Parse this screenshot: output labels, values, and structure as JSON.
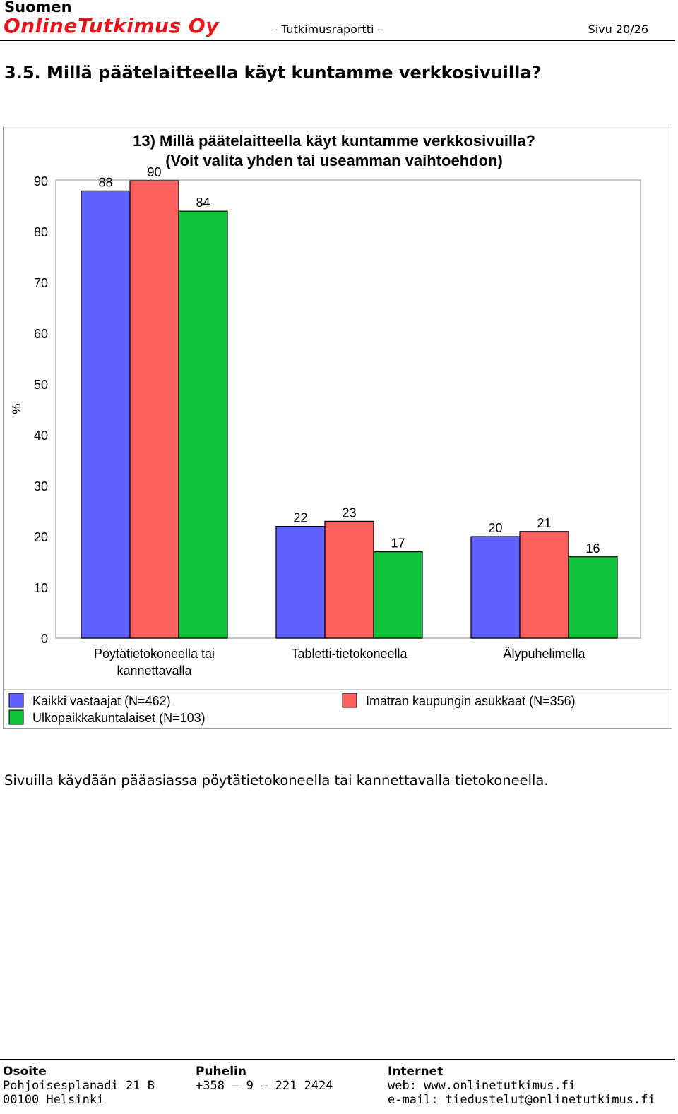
{
  "header": {
    "company_line1": "Suomen",
    "company_line2": "OnlineTutkimus Oy",
    "report_label": "– Tutkimusraportti –",
    "page": "Sivu 20/26"
  },
  "section": {
    "title": "3.5. Millä päätelaitteella käyt kuntamme verkkosivuilla?"
  },
  "chart_data": {
    "type": "bar",
    "title": "13) Millä päätelaitteella käyt kuntamme verkkosivuilla?",
    "subtitle": "(Voit valita yhden tai useamman vaihtoehdon)",
    "ylabel": "%",
    "xlabel": "",
    "ylim": [
      0,
      90
    ],
    "yticks": [
      0,
      10,
      20,
      30,
      40,
      50,
      60,
      70,
      80,
      90
    ],
    "grid": false,
    "legend_position": "bottom",
    "categories": [
      [
        "Pöytätietokoneella tai",
        "kannettavalla"
      ],
      [
        "Tabletti-tietokoneella"
      ],
      [
        "Älypuhelimella"
      ]
    ],
    "series": [
      {
        "name": "Kaikki vastaajat (N=462)",
        "color": "#6060ff",
        "values": [
          88,
          22,
          20
        ]
      },
      {
        "name": "Imatran kaupungin asukkaat (N=356)",
        "color": "#ff6060",
        "values": [
          90,
          23,
          21
        ]
      },
      {
        "name": "Ulkopaikkakuntalaiset (N=103)",
        "color": "#10c43a",
        "values": [
          84,
          17,
          16
        ]
      }
    ]
  },
  "body": {
    "text": "Sivuilla käydään pääasiassa pöytätietokoneella tai kannettavalla tietokoneella."
  },
  "footer": {
    "address_label": "Osoite",
    "address_line1": "Pohjoisesplanadi 21 B",
    "address_line2": "00100 Helsinki",
    "phone_label": "Puhelin",
    "phone": "+358 – 9 – 221 2424",
    "internet_label": "Internet",
    "web": "web: www.onlinetutkimus.fi",
    "email": "e-mail: tiedustelut@onlinetutkimus.fi"
  }
}
